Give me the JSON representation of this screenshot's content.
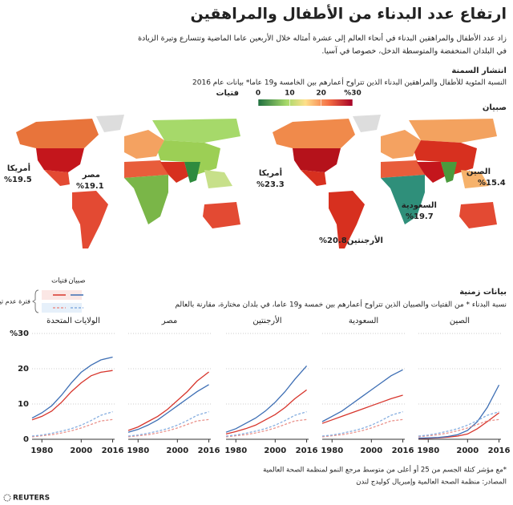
{
  "header": {
    "title": "ارتفاع عدد البدناء من الأطفال والمراهقين",
    "subtitle": [
      "زاد عدد الأطفال والمراهقين البدناء في أنحاء العالم إلى عشرة أمثاله خلال الأربعين عاما الماضية وتتسارع وتيرة الزيادة",
      "في البلدان المنخفضة والمتوسطة الدخل، خصوصا في آسيا."
    ]
  },
  "maps": {
    "heading": "انتشار السمنة",
    "description": "النسبة المئوية للأطفال والمراهقين البدناء الذين تتراوح أعمارهم بين الخامسة و19 عاما* بيانات عام 2016",
    "scale": {
      "lim": [
        0,
        30
      ],
      "ticks": [
        0,
        10,
        20,
        {
          "value": 30,
          "label": "%30"
        }
      ]
    },
    "girls": {
      "label": "فتيات",
      "callouts": [
        {
          "name": "أمريكا",
          "value": "%19.5"
        },
        {
          "name": "مصر",
          "value": "%19.1"
        }
      ]
    },
    "boys": {
      "label": "صبيان",
      "callouts": [
        {
          "name": "أمريكا",
          "value": "%23.3"
        },
        {
          "name": "الصين",
          "value": "%15.4"
        },
        {
          "name": "السعودية",
          "value": "%19.7"
        },
        {
          "name": "الأرجنتين",
          "value": "%20.8"
        }
      ]
    }
  },
  "timeline": {
    "heading": "بيانات زمنية",
    "description": "نسبة البدناء * من الفتيات والصبيان الذين تتراوح أعمارهم بين خمسة و19 عاما، في بلدان مختارة، مقارنة بالعالم",
    "band_label": "فترة عدم تيقن"
  },
  "chart_data": {
    "type": "line",
    "x": [
      1975,
      1980,
      1985,
      1990,
      1995,
      2000,
      2005,
      2010,
      2016
    ],
    "xlim": [
      1975,
      2017
    ],
    "xticks": [
      1980,
      2000,
      2016
    ],
    "ylim": [
      0,
      30
    ],
    "yticks": [
      0,
      10,
      20,
      {
        "value": 30,
        "label": "%30"
      }
    ],
    "series": [
      {
        "name": "فتيات",
        "color": "#d7352c"
      },
      {
        "name": "صبيان",
        "color": "#3d6eb4"
      },
      {
        "color": "#ea938c",
        "dash": true
      },
      {
        "color": "#86aee0",
        "dash": true
      }
    ],
    "panels": [
      {
        "title": "الولايات المتحدة",
        "values": [
          [
            5.5,
            6.5,
            8,
            10.5,
            13.5,
            16,
            18,
            19,
            19.5
          ],
          [
            6,
            7.5,
            9.5,
            12.5,
            16,
            19,
            21,
            22.5,
            23.3
          ],
          [
            0.7,
            1,
            1.3,
            1.8,
            2.4,
            3.2,
            4.2,
            5.2,
            5.6
          ],
          [
            0.9,
            1.2,
            1.7,
            2.3,
            3,
            4,
            5.3,
            6.8,
            7.8
          ]
        ]
      },
      {
        "title": "مصر",
        "values": [
          [
            2.5,
            3.5,
            5,
            6.5,
            8.5,
            11,
            13.5,
            16.5,
            19.1
          ],
          [
            2,
            2.8,
            4,
            5.5,
            7.5,
            9.5,
            11.5,
            13.5,
            15.5
          ],
          [
            0.7,
            1,
            1.3,
            1.8,
            2.4,
            3.2,
            4.2,
            5.2,
            5.6
          ],
          [
            0.9,
            1.2,
            1.7,
            2.3,
            3,
            4,
            5.3,
            6.8,
            7.8
          ]
        ]
      },
      {
        "title": "الأرجنتين",
        "values": [
          [
            1.5,
            2.2,
            3,
            4,
            5.5,
            7,
            9,
            11.5,
            14
          ],
          [
            2,
            3,
            4.5,
            6,
            8,
            10.5,
            13.5,
            17,
            20.8
          ],
          [
            0.7,
            1,
            1.3,
            1.8,
            2.4,
            3.2,
            4.2,
            5.2,
            5.6
          ],
          [
            0.9,
            1.2,
            1.7,
            2.3,
            3,
            4,
            5.3,
            6.8,
            7.8
          ]
        ]
      },
      {
        "title": "السعودية",
        "values": [
          [
            4.5,
            5.5,
            6.5,
            7.5,
            8.5,
            9.5,
            10.5,
            11.5,
            12.5
          ],
          [
            5,
            6.5,
            8,
            10,
            12,
            14,
            16,
            18,
            19.7
          ],
          [
            0.7,
            1,
            1.3,
            1.8,
            2.4,
            3.2,
            4.2,
            5.2,
            5.6
          ],
          [
            0.9,
            1.2,
            1.7,
            2.3,
            3,
            4,
            5.3,
            6.8,
            7.8
          ]
        ]
      },
      {
        "title": "الصين",
        "values": [
          [
            0.2,
            0.3,
            0.4,
            0.6,
            0.9,
            1.5,
            3,
            5,
            7.5
          ],
          [
            0.3,
            0.4,
            0.5,
            0.8,
            1.3,
            2.5,
            5,
            9,
            15.4
          ],
          [
            0.7,
            1,
            1.3,
            1.8,
            2.4,
            3.2,
            4.2,
            5.2,
            5.6
          ],
          [
            0.9,
            1.2,
            1.7,
            2.3,
            3,
            4,
            5.3,
            6.8,
            7.8
          ]
        ]
      }
    ]
  },
  "footer": {
    "note": "*مع مؤشر كتلة الجسم من 25 أو أعلى من متوسط مرجع النمو لمنظمة الصحة العالمية",
    "source": "المصادر: منظمة الصحة العالمية وإمبريال كوليدج لندن",
    "brand": "REUTERS"
  }
}
